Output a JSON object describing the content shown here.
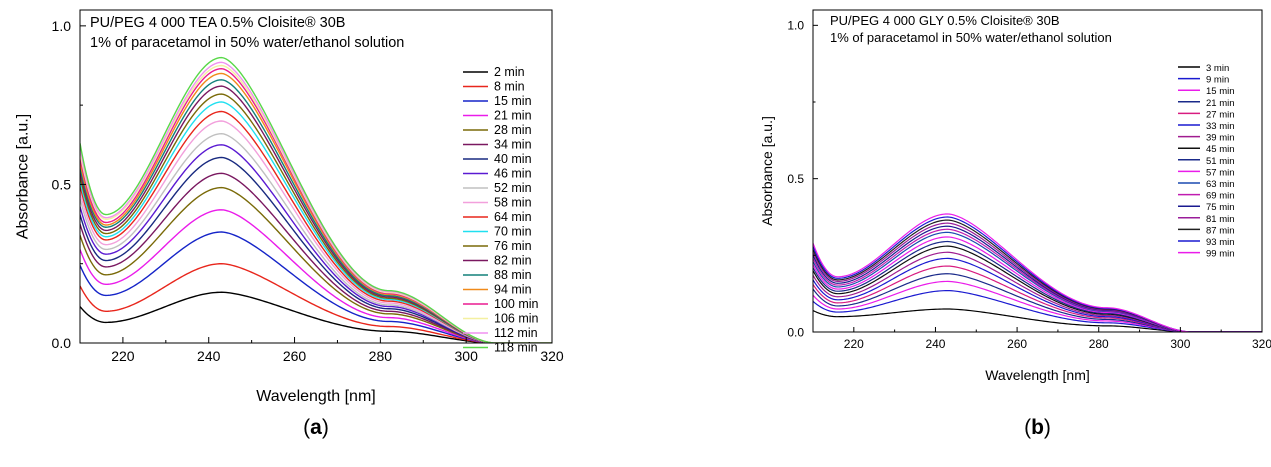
{
  "chart_data": [
    {
      "type": "line",
      "panel": "a",
      "caption_letter": "a",
      "title_lines": [
        "PU/PEG 4 000 TEA 0.5% Cloisite® 30B",
        "1% of paracetamol in 50% water/ethanol solution"
      ],
      "xlabel": "Wavelength [nm]",
      "ylabel": "Absorbance [a.u.]",
      "xlim": [
        210,
        320
      ],
      "ylim": [
        0,
        1.05
      ],
      "xticks": [
        220,
        240,
        260,
        280,
        300,
        320
      ],
      "yticks": [
        0.0,
        0.5,
        1.0
      ],
      "ytick_labels": [
        "0.0",
        "0.5",
        "1.0"
      ],
      "grid": false,
      "legend_position": "right",
      "shape": {
        "x": [
          210,
          216,
          243,
          282,
          307
        ],
        "start": 0.115,
        "min": 0.065,
        "peak": 0.16,
        "shoulder": 0.037,
        "end": 0.0
      },
      "series": [
        {
          "name": "2 min",
          "color": "#000000",
          "start": 0.115,
          "min": 0.065,
          "peak": 0.16,
          "shoulder": 0.037
        },
        {
          "name": "8 min",
          "color": "#e8261c",
          "start": 0.18,
          "min": 0.1,
          "peak": 0.25,
          "shoulder": 0.052
        },
        {
          "name": "15 min",
          "color": "#1524c8",
          "start": 0.245,
          "min": 0.15,
          "peak": 0.35,
          "shoulder": 0.068
        },
        {
          "name": "21 min",
          "color": "#ea1cea",
          "start": 0.295,
          "min": 0.185,
          "peak": 0.42,
          "shoulder": 0.08
        },
        {
          "name": "28 min",
          "color": "#7a6a08",
          "start": 0.34,
          "min": 0.215,
          "peak": 0.49,
          "shoulder": 0.092
        },
        {
          "name": "34 min",
          "color": "#7a1860",
          "start": 0.375,
          "min": 0.24,
          "peak": 0.535,
          "shoulder": 0.1
        },
        {
          "name": "40 min",
          "color": "#182a80",
          "start": 0.405,
          "min": 0.26,
          "peak": 0.585,
          "shoulder": 0.108
        },
        {
          "name": "46 min",
          "color": "#5a1ad2",
          "start": 0.43,
          "min": 0.28,
          "peak": 0.625,
          "shoulder": 0.115
        },
        {
          "name": "52 min",
          "color": "#c0c0c0",
          "start": 0.455,
          "min": 0.295,
          "peak": 0.66,
          "shoulder": 0.12
        },
        {
          "name": "58 min",
          "color": "#f2a0dc",
          "start": 0.475,
          "min": 0.31,
          "peak": 0.7,
          "shoulder": 0.126
        },
        {
          "name": "64 min",
          "color": "#e8261c",
          "start": 0.495,
          "min": 0.325,
          "peak": 0.73,
          "shoulder": 0.132
        },
        {
          "name": "70 min",
          "color": "#20e0f0",
          "start": 0.51,
          "min": 0.335,
          "peak": 0.76,
          "shoulder": 0.137
        },
        {
          "name": "76 min",
          "color": "#7a6a08",
          "start": 0.525,
          "min": 0.345,
          "peak": 0.785,
          "shoulder": 0.141
        },
        {
          "name": "82 min",
          "color": "#7a1860",
          "start": 0.54,
          "min": 0.355,
          "peak": 0.81,
          "shoulder": 0.145
        },
        {
          "name": "88 min",
          "color": "#12807a",
          "start": 0.555,
          "min": 0.365,
          "peak": 0.83,
          "shoulder": 0.149
        },
        {
          "name": "94 min",
          "color": "#f08a1a",
          "start": 0.57,
          "min": 0.372,
          "peak": 0.85,
          "shoulder": 0.153
        },
        {
          "name": "100 min",
          "color": "#ea1c90",
          "start": 0.585,
          "min": 0.38,
          "peak": 0.865,
          "shoulder": 0.156
        },
        {
          "name": "106 min",
          "color": "#f4f0a0",
          "start": 0.6,
          "min": 0.39,
          "peak": 0.875,
          "shoulder": 0.159
        },
        {
          "name": "112 min",
          "color": "#f090f0",
          "start": 0.615,
          "min": 0.395,
          "peak": 0.885,
          "shoulder": 0.162
        },
        {
          "name": "118 min",
          "color": "#58d848",
          "start": 0.63,
          "min": 0.405,
          "peak": 0.9,
          "shoulder": 0.165
        }
      ]
    },
    {
      "type": "line",
      "panel": "b",
      "caption_letter": "b",
      "title_lines": [
        "PU/PEG 4 000 GLY 0.5% Cloisite® 30B",
        "1% of paracetamol in 50% water/ethanol solution"
      ],
      "xlabel": "Wavelength [nm]",
      "ylabel": "Absorbance [a.u.]",
      "xlim": [
        210,
        320
      ],
      "ylim": [
        0,
        1.05
      ],
      "xticks": [
        220,
        240,
        260,
        280,
        300,
        320
      ],
      "yticks": [
        0.0,
        0.5,
        1.0
      ],
      "ytick_labels": [
        "0.0",
        "0.5",
        "1.0"
      ],
      "grid": false,
      "legend_position": "right",
      "shape": {
        "x": [
          210,
          216,
          243,
          282,
          303
        ],
        "start": 0.07,
        "min": 0.05,
        "peak": 0.075,
        "shoulder": 0.02,
        "end": 0.0
      },
      "series": [
        {
          "name": "3 min",
          "color": "#000000",
          "start": 0.07,
          "min": 0.05,
          "peak": 0.075,
          "shoulder": 0.02
        },
        {
          "name": "9 min",
          "color": "#1a1ad0",
          "start": 0.1,
          "min": 0.065,
          "peak": 0.135,
          "shoulder": 0.03
        },
        {
          "name": "15 min",
          "color": "#ea1cea",
          "start": 0.12,
          "min": 0.075,
          "peak": 0.165,
          "shoulder": 0.036
        },
        {
          "name": "21 min",
          "color": "#1a2a8a",
          "start": 0.14,
          "min": 0.085,
          "peak": 0.19,
          "shoulder": 0.041
        },
        {
          "name": "27 min",
          "color": "#d81c80",
          "start": 0.155,
          "min": 0.095,
          "peak": 0.215,
          "shoulder": 0.046
        },
        {
          "name": "33 min",
          "color": "#1a1ad0",
          "start": 0.17,
          "min": 0.105,
          "peak": 0.24,
          "shoulder": 0.05
        },
        {
          "name": "39 min",
          "color": "#a01c90",
          "start": 0.185,
          "min": 0.115,
          "peak": 0.26,
          "shoulder": 0.054
        },
        {
          "name": "45 min",
          "color": "#101010",
          "start": 0.2,
          "min": 0.125,
          "peak": 0.28,
          "shoulder": 0.058
        },
        {
          "name": "51 min",
          "color": "#1a2a8a",
          "start": 0.21,
          "min": 0.133,
          "peak": 0.295,
          "shoulder": 0.061
        },
        {
          "name": "57 min",
          "color": "#ea1cea",
          "start": 0.22,
          "min": 0.14,
          "peak": 0.31,
          "shoulder": 0.064
        },
        {
          "name": "63 min",
          "color": "#1a4ab0",
          "start": 0.23,
          "min": 0.147,
          "peak": 0.325,
          "shoulder": 0.067
        },
        {
          "name": "69 min",
          "color": "#c01cb0",
          "start": 0.24,
          "min": 0.153,
          "peak": 0.335,
          "shoulder": 0.069
        },
        {
          "name": "75 min",
          "color": "#1a1a90",
          "start": 0.25,
          "min": 0.159,
          "peak": 0.345,
          "shoulder": 0.071
        },
        {
          "name": "81 min",
          "color": "#9a1c9a",
          "start": 0.26,
          "min": 0.165,
          "peak": 0.355,
          "shoulder": 0.073
        },
        {
          "name": "87 min",
          "color": "#202020",
          "start": 0.27,
          "min": 0.17,
          "peak": 0.365,
          "shoulder": 0.075
        },
        {
          "name": "93 min",
          "color": "#1a1ad0",
          "start": 0.28,
          "min": 0.175,
          "peak": 0.375,
          "shoulder": 0.077
        },
        {
          "name": "99 min",
          "color": "#ea1cea",
          "start": 0.29,
          "min": 0.18,
          "peak": 0.385,
          "shoulder": 0.079
        }
      ]
    }
  ]
}
